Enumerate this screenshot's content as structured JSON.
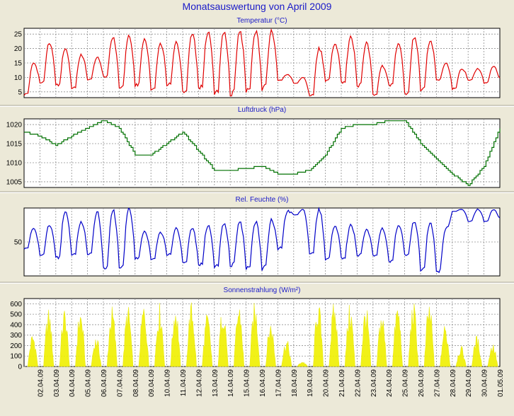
{
  "title": "Monatsauswertung von April 2009",
  "colors": {
    "temperature": "#e00000",
    "pressure": "#007000",
    "humidity": "#0000c8",
    "radiation": "#f0f000",
    "title": "#1a1ac8"
  },
  "x_axis": {
    "date_labels": [
      "02.04.09",
      "03.04.09",
      "04.04.09",
      "05.04.09",
      "06.04.09",
      "07.04.09",
      "08.04.09",
      "09.04.09",
      "10.04.09",
      "11.04.09",
      "12.04.09",
      "13.04.09",
      "14.04.09",
      "15.04.09",
      "16.04.09",
      "17.04.09",
      "18.04.09",
      "19.04.09",
      "20.04.09",
      "21.04.09",
      "22.04.09",
      "23.04.09",
      "24.04.09",
      "25.04.09",
      "26.04.09",
      "27.04.09",
      "28.04.09",
      "29.04.09",
      "30.04.09",
      "01.05.09"
    ]
  },
  "chart_data": [
    {
      "type": "line",
      "title": "Temperatur (°C)",
      "ylim": [
        3,
        27
      ],
      "yticks": [
        5,
        10,
        15,
        20,
        25
      ],
      "grid": true,
      "series": [
        {
          "x": [
            "01.04.09",
            "02.04.09",
            "03.04.09",
            "04.04.09",
            "05.04.09",
            "06.04.09",
            "07.04.09",
            "08.04.09",
            "09.04.09",
            "10.04.09",
            "11.04.09",
            "12.04.09",
            "13.04.09",
            "14.04.09",
            "15.04.09",
            "16.04.09",
            "17.04.09",
            "18.04.09",
            "19.04.09",
            "20.04.09",
            "21.04.09",
            "22.04.09",
            "23.04.09",
            "24.04.09",
            "25.04.09",
            "26.04.09",
            "27.04.09",
            "28.04.09",
            "29.04.09",
            "30.04.09"
          ],
          "min": [
            4,
            8,
            7,
            6,
            9,
            10,
            6,
            7,
            6,
            7,
            5,
            6,
            4,
            4,
            5,
            6,
            9,
            8,
            3,
            9,
            8,
            7,
            4,
            7,
            4,
            6,
            9,
            6,
            9,
            8
          ],
          "max": [
            15,
            22,
            20,
            18,
            17,
            24,
            24,
            23,
            22,
            22,
            25,
            26,
            26,
            26,
            26,
            26,
            11,
            10,
            20,
            22,
            24,
            22,
            14,
            22,
            24,
            23,
            15,
            13,
            13,
            14
          ]
        }
      ]
    },
    {
      "type": "line",
      "title": "Luftdruck (hPa)",
      "ylim": [
        1003.5,
        1021.5
      ],
      "yticks": [
        1005,
        1010,
        1015,
        1020
      ],
      "grid": true,
      "series": [
        {
          "x": [
            "01.04.09",
            "02.04.09",
            "03.04.09",
            "04.04.09",
            "05.04.09",
            "06.04.09",
            "07.04.09",
            "08.04.09",
            "09.04.09",
            "10.04.09",
            "11.04.09",
            "12.04.09",
            "13.04.09",
            "14.04.09",
            "15.04.09",
            "16.04.09",
            "17.04.09",
            "18.04.09",
            "19.04.09",
            "20.04.09",
            "21.04.09",
            "22.04.09",
            "23.04.09",
            "24.04.09",
            "25.04.09",
            "26.04.09",
            "27.04.09",
            "28.04.09",
            "29.04.09",
            "30.04.09",
            "01.05.09"
          ],
          "y": [
            1018,
            1017,
            1014.5,
            1017,
            1019,
            1021,
            1019,
            1012,
            1012,
            1015,
            1018,
            1013,
            1008,
            1008,
            1008.5,
            1009,
            1007,
            1007,
            1008,
            1012,
            1019,
            1020,
            1020,
            1021,
            1021,
            1015,
            1011,
            1007,
            1004,
            1009,
            1019
          ]
        }
      ]
    },
    {
      "type": "line",
      "title": "Rel. Feuchte (%)",
      "ylim": [
        0,
        100
      ],
      "yticks": [
        50
      ],
      "grid": true,
      "series": [
        {
          "x": [
            "01.04.09",
            "02.04.09",
            "03.04.09",
            "04.04.09",
            "05.04.09",
            "06.04.09",
            "07.04.09",
            "08.04.09",
            "09.04.09",
            "10.04.09",
            "11.04.09",
            "12.04.09",
            "13.04.09",
            "14.04.09",
            "15.04.09",
            "16.04.09",
            "17.04.09",
            "18.04.09",
            "19.04.09",
            "20.04.09",
            "21.04.09",
            "22.04.09",
            "23.04.09",
            "24.04.09",
            "25.04.09",
            "26.04.09",
            "27.04.09",
            "28.04.09",
            "29.04.09",
            "30.04.09"
          ],
          "min": [
            40,
            30,
            25,
            30,
            30,
            10,
            10,
            25,
            25,
            30,
            20,
            15,
            12,
            15,
            10,
            10,
            40,
            90,
            30,
            25,
            25,
            30,
            30,
            20,
            30,
            10,
            5,
            95,
            80,
            80
          ],
          "max": [
            70,
            75,
            95,
            80,
            95,
            98,
            98,
            65,
            65,
            70,
            70,
            75,
            78,
            80,
            80,
            82,
            95,
            98,
            98,
            75,
            75,
            68,
            70,
            75,
            80,
            80,
            70,
            98,
            98,
            98
          ]
        }
      ]
    },
    {
      "type": "area",
      "title": "Sonnenstrahlung (W/m²)",
      "ylim": [
        0,
        650
      ],
      "yticks": [
        0,
        100,
        200,
        300,
        400,
        500,
        600
      ],
      "grid": true,
      "series": [
        {
          "x": [
            "01.04.09",
            "02.04.09",
            "03.04.09",
            "04.04.09",
            "05.04.09",
            "06.04.09",
            "07.04.09",
            "08.04.09",
            "09.04.09",
            "10.04.09",
            "11.04.09",
            "12.04.09",
            "13.04.09",
            "14.04.09",
            "15.04.09",
            "16.04.09",
            "17.04.09",
            "18.04.09",
            "19.04.09",
            "20.04.09",
            "21.04.09",
            "22.04.09",
            "23.04.09",
            "24.04.09",
            "25.04.09",
            "26.04.09",
            "27.04.09",
            "28.04.09",
            "29.04.09",
            "30.04.09"
          ],
          "y": [
            330,
            560,
            570,
            570,
            300,
            590,
            600,
            620,
            620,
            620,
            630,
            520,
            630,
            630,
            630,
            450,
            270,
            50,
            650,
            620,
            610,
            600,
            540,
            620,
            630,
            630,
            420,
            200,
            300,
            230
          ]
        }
      ]
    }
  ]
}
